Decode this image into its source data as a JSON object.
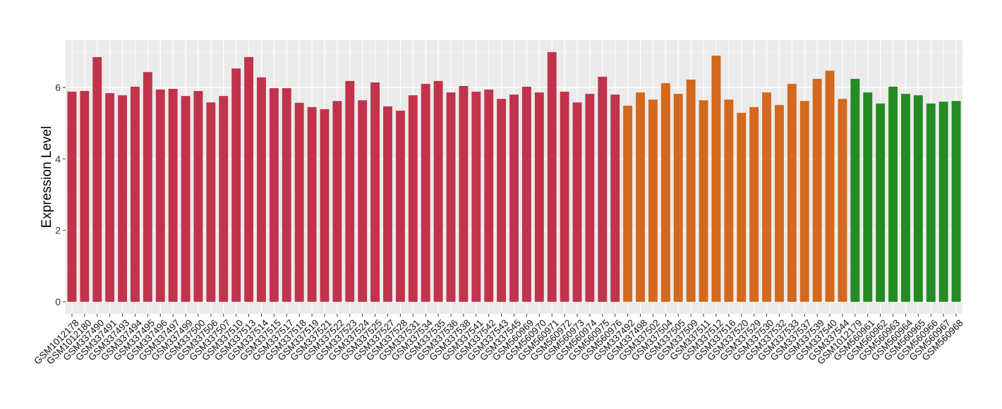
{
  "chart_data": {
    "type": "bar",
    "title": "",
    "xlabel": "",
    "ylabel": "Expression Level",
    "ylim": [
      0,
      7.3
    ],
    "yticks": [
      0,
      2,
      4,
      6
    ],
    "grid": true,
    "colors": {
      "red": "#C0334B",
      "orange": "#D2691E",
      "green": "#228B22",
      "panel": "#EBEBEB"
    },
    "categories": [
      "GSM1012178",
      "GSM1012180",
      "GSM337490",
      "GSM337491",
      "GSM337493",
      "GSM337494",
      "GSM337495",
      "GSM337496",
      "GSM337497",
      "GSM337499",
      "GSM337500",
      "GSM337506",
      "GSM337507",
      "GSM337510",
      "GSM337513",
      "GSM337514",
      "GSM337515",
      "GSM337517",
      "GSM337518",
      "GSM337519",
      "GSM337521",
      "GSM337522",
      "GSM337523",
      "GSM337524",
      "GSM337525",
      "GSM337527",
      "GSM337528",
      "GSM337531",
      "GSM337534",
      "GSM337535",
      "GSM337536",
      "GSM337538",
      "GSM337541",
      "GSM337542",
      "GSM337543",
      "GSM337545",
      "GSM560969",
      "GSM560970",
      "GSM560971",
      "GSM560972",
      "GSM560973",
      "GSM560974",
      "GSM560975",
      "GSM560976",
      "GSM337492",
      "GSM337498",
      "GSM337502",
      "GSM337504",
      "GSM337505",
      "GSM337509",
      "GSM337511",
      "GSM337512",
      "GSM337516",
      "GSM337520",
      "GSM337529",
      "GSM337530",
      "GSM337532",
      "GSM337533",
      "GSM337537",
      "GSM337539",
      "GSM337540",
      "GSM337544",
      "GSM1012179",
      "GSM560961",
      "GSM560962",
      "GSM560963",
      "GSM560964",
      "GSM560965",
      "GSM560966",
      "GSM560967",
      "GSM560968"
    ],
    "values": [
      5.88,
      5.9,
      6.85,
      5.84,
      5.78,
      6.02,
      6.43,
      5.94,
      5.96,
      5.76,
      5.9,
      5.58,
      5.76,
      6.53,
      6.85,
      6.28,
      5.98,
      5.98,
      5.57,
      5.45,
      5.39,
      5.62,
      6.18,
      5.64,
      6.14,
      5.47,
      5.35,
      5.78,
      6.1,
      6.18,
      5.86,
      6.04,
      5.88,
      5.94,
      5.68,
      5.8,
      6.02,
      5.86,
      6.99,
      5.88,
      5.58,
      5.82,
      6.3,
      5.8,
      5.49,
      5.86,
      5.66,
      6.12,
      5.82,
      6.22,
      5.64,
      6.89,
      5.66,
      5.29,
      5.45,
      5.86,
      5.51,
      6.1,
      5.62,
      6.24,
      6.47,
      5.68,
      6.24,
      5.86,
      5.55,
      6.02,
      5.82,
      5.78,
      5.55,
      5.6,
      5.62
    ],
    "groups": [
      "red",
      "red",
      "red",
      "red",
      "red",
      "red",
      "red",
      "red",
      "red",
      "red",
      "red",
      "red",
      "red",
      "red",
      "red",
      "red",
      "red",
      "red",
      "red",
      "red",
      "red",
      "red",
      "red",
      "red",
      "red",
      "red",
      "red",
      "red",
      "red",
      "red",
      "red",
      "red",
      "red",
      "red",
      "red",
      "red",
      "red",
      "red",
      "red",
      "red",
      "red",
      "red",
      "red",
      "red",
      "orange",
      "orange",
      "orange",
      "orange",
      "orange",
      "orange",
      "orange",
      "orange",
      "orange",
      "orange",
      "orange",
      "orange",
      "orange",
      "orange",
      "orange",
      "orange",
      "orange",
      "orange",
      "green",
      "green",
      "green",
      "green",
      "green",
      "green",
      "green",
      "green",
      "green"
    ]
  }
}
